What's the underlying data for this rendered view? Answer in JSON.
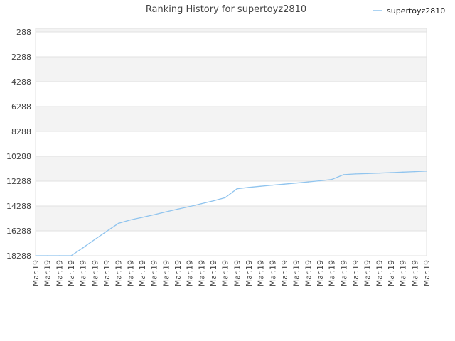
{
  "chart_data": {
    "type": "line",
    "title": "Ranking History for supertoyz2810",
    "xlabel": "",
    "ylabel": "",
    "y_inverted": true,
    "ylim": [
      288,
      18288
    ],
    "y_ticks": [
      288,
      2288,
      4288,
      6288,
      8288,
      10288,
      12288,
      14288,
      16288,
      18288
    ],
    "y_tick_labels": [
      "288",
      "2288",
      "4288",
      "6288",
      "8288",
      "10288",
      "12288",
      "14288",
      "16288",
      "18288"
    ],
    "x": [
      "Mar.19",
      "Mar.19",
      "Mar.19",
      "Mar.19",
      "Mar.19",
      "Mar.19",
      "Mar.19",
      "Mar.19",
      "Mar.19",
      "Mar.19",
      "Mar.19",
      "Mar.19",
      "Mar.19",
      "Mar.19",
      "Mar.19",
      "Mar.19",
      "Mar.19",
      "Mar.19",
      "Mar.19",
      "Mar.19",
      "Mar.19",
      "Mar.19",
      "Mar.19",
      "Mar.19",
      "Mar.19",
      "Mar.19",
      "Mar.19",
      "Mar.19",
      "Mar.19",
      "Mar.19",
      "Mar.19",
      "Mar.19",
      "Mar.19",
      "Mar.19"
    ],
    "series": [
      {
        "name": "supertoyz2810",
        "color": "#90c4ee",
        "values": [
          18288,
          18288,
          18288,
          18288,
          17650,
          16980,
          16330,
          15680,
          15410,
          15200,
          14990,
          14760,
          14540,
          14330,
          14100,
          13870,
          13620,
          12900,
          12790,
          12700,
          12610,
          12530,
          12440,
          12350,
          12260,
          12150,
          11770,
          11710,
          11680,
          11640,
          11600,
          11560,
          11520,
          11480
        ]
      }
    ],
    "legend_position": "top-right",
    "grid": true,
    "band_colors": [
      "#ffffff",
      "#f3f3f3"
    ]
  }
}
